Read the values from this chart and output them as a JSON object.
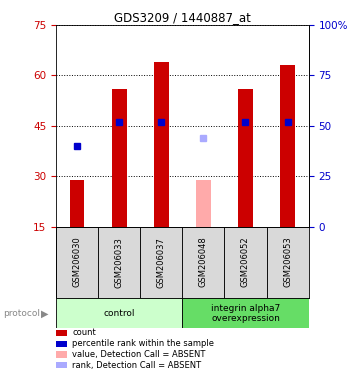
{
  "title": "GDS3209 / 1440887_at",
  "samples": [
    "GSM206030",
    "GSM206033",
    "GSM206037",
    "GSM206048",
    "GSM206052",
    "GSM206053"
  ],
  "groups": [
    {
      "label": "control",
      "indices": [
        0,
        1,
        2
      ],
      "color": "#ccffcc"
    },
    {
      "label": "integrin alpha7\noverexpression",
      "indices": [
        3,
        4,
        5
      ],
      "color": "#66dd66"
    }
  ],
  "bar_values": [
    29,
    56,
    64,
    null,
    56,
    63
  ],
  "bar_absent": [
    null,
    null,
    null,
    29,
    null,
    null
  ],
  "rank_values": [
    40,
    52,
    52,
    null,
    52,
    52
  ],
  "rank_absent": [
    null,
    null,
    null,
    44,
    null,
    null
  ],
  "bar_color": "#cc0000",
  "bar_absent_color": "#ffaaaa",
  "rank_color": "#0000cc",
  "rank_absent_color": "#aaaaff",
  "ylim_left": [
    15,
    75
  ],
  "ylim_right": [
    0,
    100
  ],
  "left_ticks": [
    15,
    30,
    45,
    60,
    75
  ],
  "right_ticks": [
    0,
    25,
    50,
    75,
    100
  ],
  "right_tick_labels": [
    "0",
    "25",
    "50",
    "75",
    "100%"
  ],
  "bar_width": 0.35,
  "legend_items": [
    {
      "label": "count",
      "color": "#cc0000"
    },
    {
      "label": "percentile rank within the sample",
      "color": "#0000cc"
    },
    {
      "label": "value, Detection Call = ABSENT",
      "color": "#ffaaaa"
    },
    {
      "label": "rank, Detection Call = ABSENT",
      "color": "#aaaaff"
    }
  ],
  "protocol_label": "protocol",
  "tick_label_color_left": "#cc0000",
  "tick_label_color_right": "#0000cc",
  "background_color": "#ffffff",
  "plot_bg": "#ffffff",
  "sample_bg": "#d9d9d9"
}
